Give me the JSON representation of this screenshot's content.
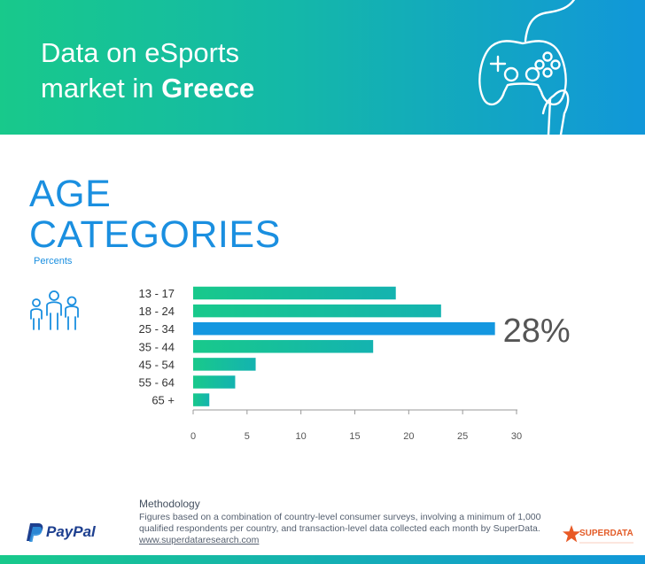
{
  "header": {
    "title_line1": "Data on eSports",
    "title_line2_prefix": "market in ",
    "title_line2_bold": "Greece"
  },
  "section": {
    "title_line1": "AGE",
    "title_line2": "CATEGORIES",
    "subtitle": "Percents"
  },
  "chart_data": {
    "type": "bar",
    "orientation": "horizontal",
    "categories": [
      "13 - 17",
      "18 - 24",
      "25 - 34",
      "35 - 44",
      "45 - 54",
      "55 - 64",
      "65 +"
    ],
    "values": [
      18.8,
      23.0,
      28.0,
      16.7,
      5.8,
      3.9,
      1.5
    ],
    "highlight_index": 2,
    "highlight_label": "28%",
    "xlim": [
      0,
      30
    ],
    "xticks": [
      0,
      5,
      10,
      15,
      20,
      25,
      30
    ],
    "colors": {
      "bar_start": "#18c98b",
      "bar_end": "#14b3b0",
      "highlight": "#1497e0",
      "axis": "#999999"
    }
  },
  "methodology": {
    "heading": "Methodology",
    "line1": "Figures based on a combination of country-level consumer surveys, involving a minimum of 1,000",
    "line2": "qualified respondents per country, and transaction-level data collected each month by SuperData.",
    "link": "www.superdataresearch.com"
  },
  "logos": {
    "paypal": "PayPal",
    "superdata": "SUPERDATA"
  },
  "icons": [
    "game-controller-icon",
    "people-icon",
    "paypal-logo",
    "superdata-star-logo"
  ]
}
